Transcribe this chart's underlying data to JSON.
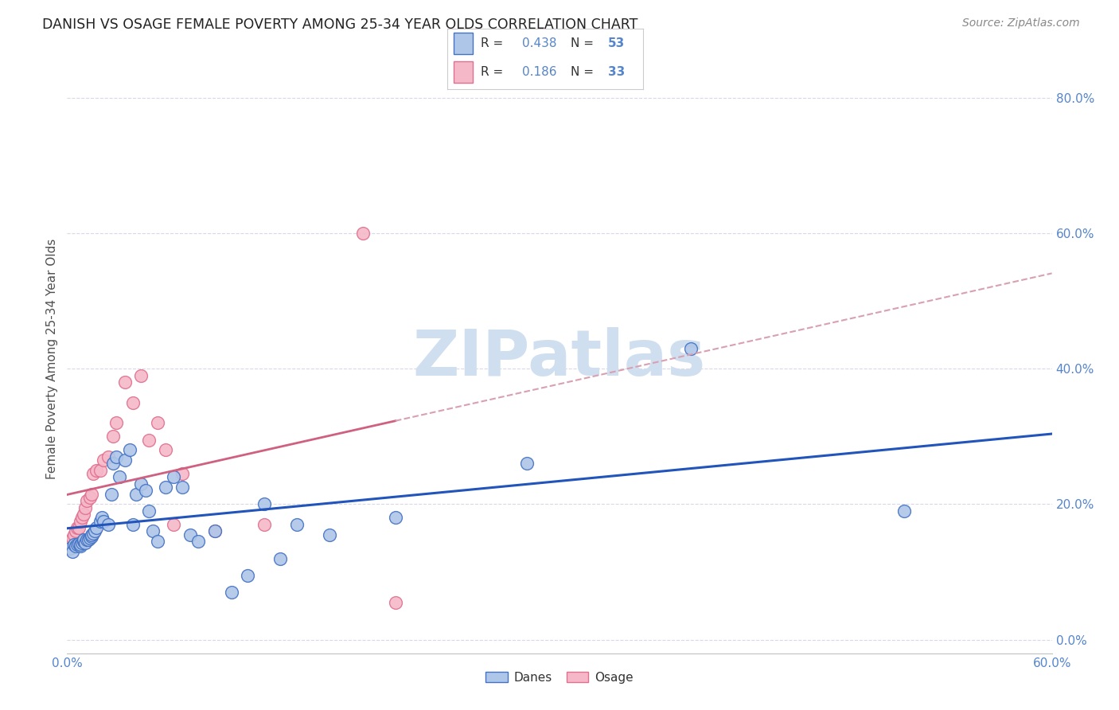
{
  "title": "DANISH VS OSAGE FEMALE POVERTY AMONG 25-34 YEAR OLDS CORRELATION CHART",
  "source": "Source: ZipAtlas.com",
  "ylabel": "Female Poverty Among 25-34 Year Olds",
  "xlim": [
    0.0,
    0.6
  ],
  "ylim": [
    -0.02,
    0.85
  ],
  "yticks": [
    0.0,
    0.2,
    0.4,
    0.6,
    0.8
  ],
  "xtick_positions": [
    0.0,
    0.6
  ],
  "xtick_labels": [
    "0.0%",
    "60.0%"
  ],
  "ytick_labels": [
    "0.0%",
    "20.0%",
    "40.0%",
    "60.0%",
    "80.0%"
  ],
  "danes_color": "#aec6e8",
  "osage_color": "#f5b8c8",
  "danes_edge_color": "#4472c4",
  "osage_edge_color": "#e07090",
  "danes_line_color": "#2255bb",
  "osage_line_color": "#d06080",
  "osage_dash_color": "#d8a0b0",
  "tick_color": "#5585cc",
  "background_color": "#ffffff",
  "grid_color": "#d8d8e8",
  "watermark": "ZIPatlas",
  "watermark_color": "#d0dff0",
  "danes_R": "0.438",
  "danes_N": "53",
  "osage_R": "0.186",
  "osage_N": "33",
  "danes_x": [
    0.002,
    0.003,
    0.004,
    0.005,
    0.006,
    0.007,
    0.008,
    0.008,
    0.009,
    0.01,
    0.01,
    0.011,
    0.012,
    0.013,
    0.014,
    0.015,
    0.015,
    0.016,
    0.017,
    0.018,
    0.02,
    0.021,
    0.022,
    0.025,
    0.027,
    0.028,
    0.03,
    0.032,
    0.035,
    0.038,
    0.04,
    0.042,
    0.045,
    0.048,
    0.05,
    0.052,
    0.055,
    0.06,
    0.065,
    0.07,
    0.075,
    0.08,
    0.09,
    0.1,
    0.11,
    0.12,
    0.13,
    0.14,
    0.16,
    0.2,
    0.28,
    0.38,
    0.51
  ],
  "danes_y": [
    0.135,
    0.13,
    0.14,
    0.138,
    0.14,
    0.142,
    0.138,
    0.14,
    0.143,
    0.145,
    0.148,
    0.143,
    0.148,
    0.148,
    0.15,
    0.152,
    0.155,
    0.157,
    0.16,
    0.165,
    0.175,
    0.18,
    0.175,
    0.17,
    0.215,
    0.26,
    0.27,
    0.24,
    0.265,
    0.28,
    0.17,
    0.215,
    0.23,
    0.22,
    0.19,
    0.16,
    0.145,
    0.225,
    0.24,
    0.225,
    0.155,
    0.145,
    0.16,
    0.07,
    0.095,
    0.2,
    0.12,
    0.17,
    0.155,
    0.18,
    0.26,
    0.43,
    0.19
  ],
  "osage_x": [
    0.001,
    0.002,
    0.003,
    0.004,
    0.005,
    0.006,
    0.007,
    0.008,
    0.009,
    0.01,
    0.011,
    0.012,
    0.014,
    0.015,
    0.016,
    0.018,
    0.02,
    0.022,
    0.025,
    0.028,
    0.03,
    0.035,
    0.04,
    0.045,
    0.05,
    0.055,
    0.06,
    0.065,
    0.07,
    0.09,
    0.12,
    0.18,
    0.2
  ],
  "osage_y": [
    0.14,
    0.145,
    0.15,
    0.155,
    0.16,
    0.165,
    0.165,
    0.175,
    0.18,
    0.185,
    0.195,
    0.205,
    0.21,
    0.215,
    0.245,
    0.25,
    0.25,
    0.265,
    0.27,
    0.3,
    0.32,
    0.38,
    0.35,
    0.39,
    0.295,
    0.32,
    0.28,
    0.17,
    0.245,
    0.16,
    0.17,
    0.6,
    0.055
  ]
}
